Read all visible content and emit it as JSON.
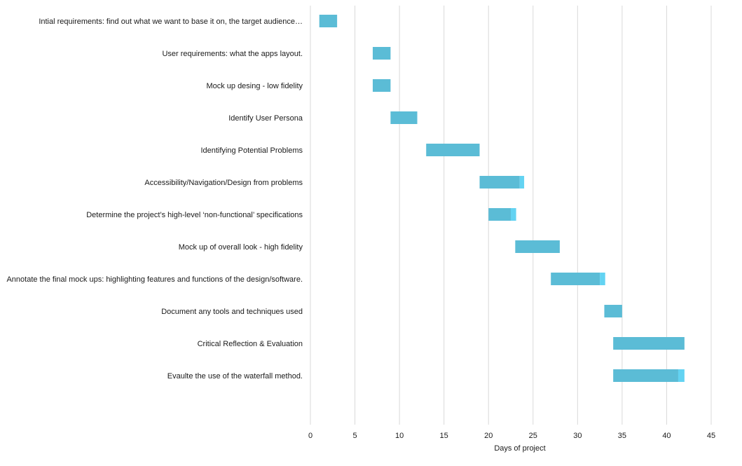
{
  "chart_data": {
    "type": "bar",
    "orientation": "horizontal-gantt",
    "title": "",
    "xlabel": "Days of project",
    "ylabel": "",
    "xlim": [
      0,
      45
    ],
    "x_ticks": [
      0,
      5,
      10,
      15,
      20,
      25,
      30,
      35,
      40,
      45
    ],
    "grid": "vertical",
    "legend": "none",
    "colors": {
      "bar": "#5bbcd6",
      "bar_extension": "#63d3f2",
      "gridline": "#d9d9d9",
      "text": "#1a1a1a"
    },
    "tasks": [
      {
        "label": "Intial requirements: find out what we want to base it on, the target audience…",
        "start": 1,
        "duration": 2,
        "extension": 0
      },
      {
        "label": "User requirements: what the apps layout.",
        "start": 7,
        "duration": 2,
        "extension": 0
      },
      {
        "label": "Mock up desing - low fidelity",
        "start": 7,
        "duration": 2,
        "extension": 0
      },
      {
        "label": "Identify User Persona",
        "start": 9,
        "duration": 3,
        "extension": 0
      },
      {
        "label": "Identifying Potential Problems",
        "start": 13,
        "duration": 6,
        "extension": 0
      },
      {
        "label": "Accessibility/Navigation/Design from problems",
        "start": 19,
        "duration": 4.5,
        "extension": 0.5
      },
      {
        "label": "Determine the project’s high-level ‘non-functional’ specifications",
        "start": 20,
        "duration": 2.5,
        "extension": 0.6
      },
      {
        "label": "Mock up of overall look - high fidelity",
        "start": 23,
        "duration": 5,
        "extension": 0
      },
      {
        "label": "Annotate the final mock ups: highlighting features and functions of the design/software.",
        "start": 27,
        "duration": 5.5,
        "extension": 0.6
      },
      {
        "label": "Document any tools and techniques used",
        "start": 33,
        "duration": 2,
        "extension": 0
      },
      {
        "label": "Critical Reflection & Evaluation",
        "start": 34,
        "duration": 8,
        "extension": 0
      },
      {
        "label": "Evaulte the use of the waterfall method.",
        "start": 34,
        "duration": 7.3,
        "extension": 0.7
      }
    ]
  }
}
